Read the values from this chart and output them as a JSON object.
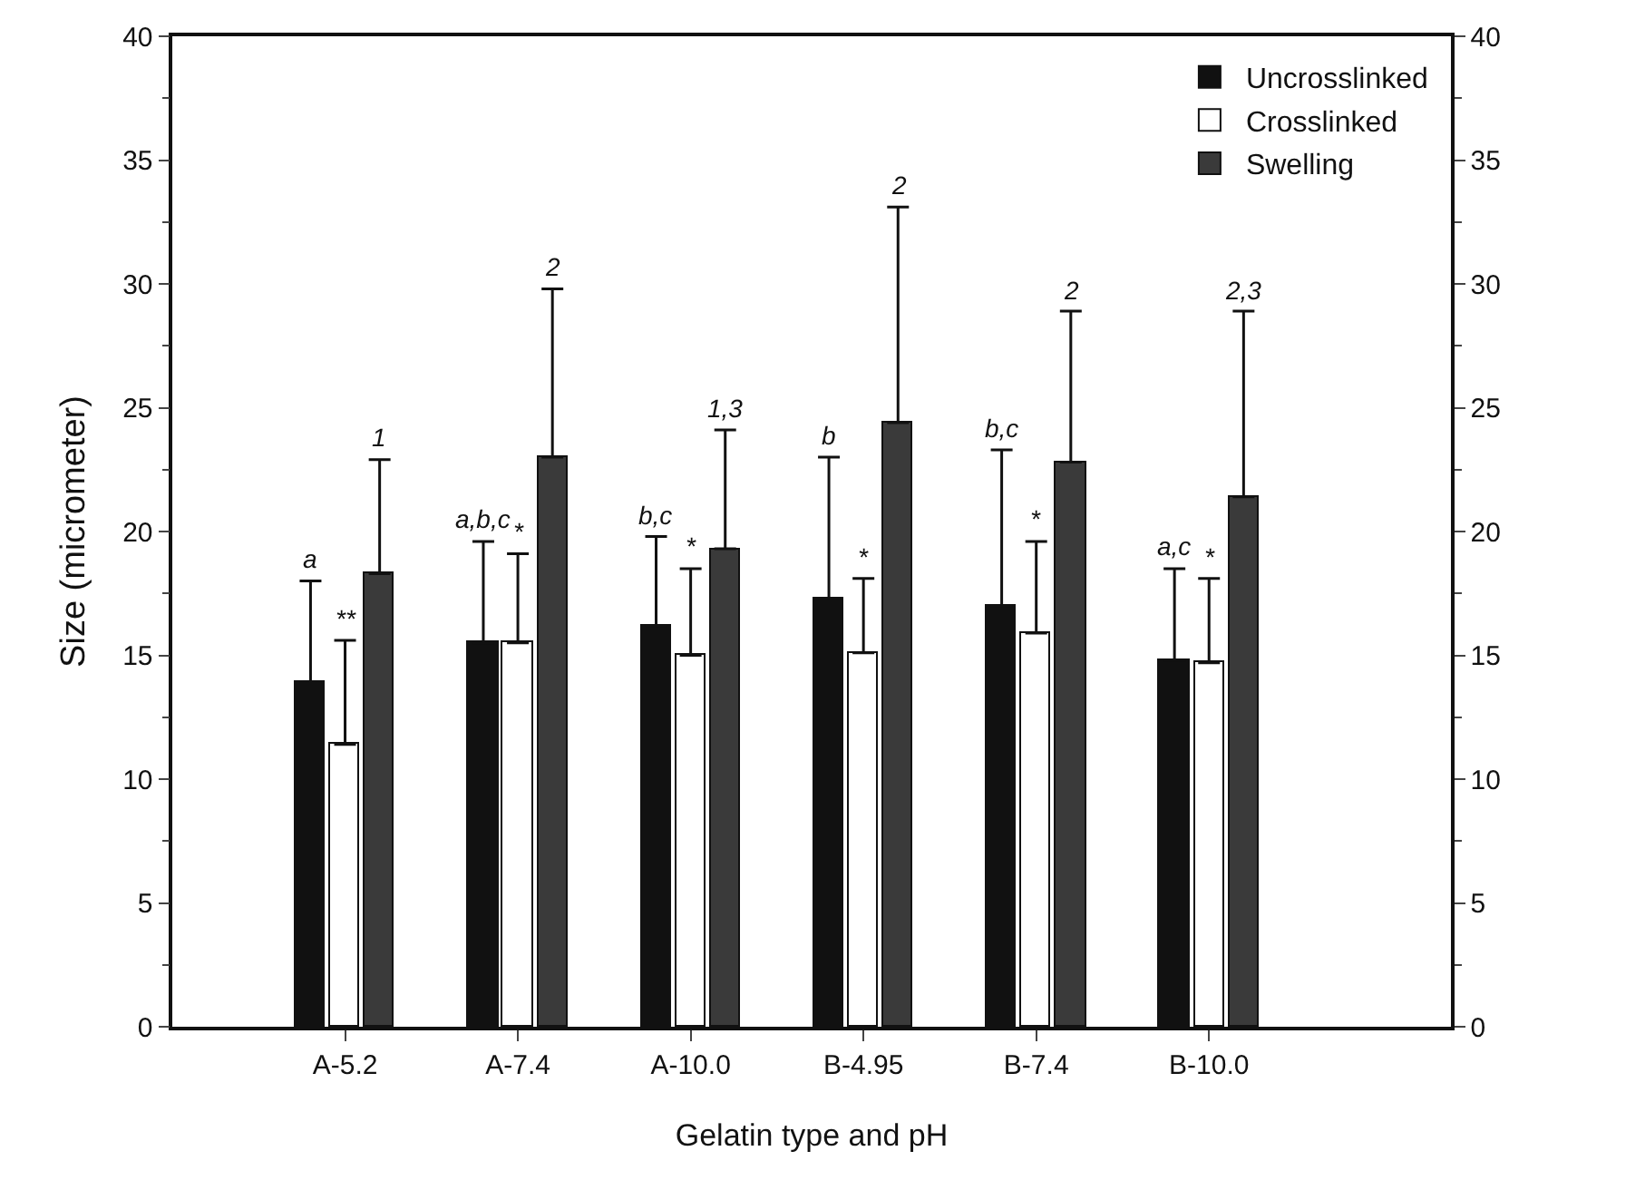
{
  "chart_data": {
    "type": "bar",
    "xlabel": "Gelatin type and pH",
    "ylabel": "Size (micrometer)",
    "categories": [
      "A-5.2",
      "A-7.4",
      "A-10.0",
      "B-4.95",
      "B-7.4",
      "B-10.0"
    ],
    "series": [
      {
        "name": "Uncrosslinked",
        "color": "#111111",
        "values": [
          13.9,
          15.5,
          16.2,
          17.3,
          17.0,
          14.8
        ],
        "errors": [
          [
            13.9,
            18.0
          ],
          [
            15.5,
            19.6
          ],
          [
            16.2,
            19.8
          ],
          [
            17.3,
            23.0
          ],
          [
            17.0,
            23.3
          ],
          [
            14.8,
            18.5
          ]
        ]
      },
      {
        "name": "Crosslinked",
        "color": "#ffffff",
        "values": [
          11.4,
          15.5,
          15.0,
          15.1,
          15.9,
          14.7
        ],
        "errors": [
          [
            11.4,
            15.6
          ],
          [
            15.5,
            19.1
          ],
          [
            15.0,
            18.5
          ],
          [
            15.1,
            18.1
          ],
          [
            15.9,
            19.6
          ],
          [
            14.7,
            18.1
          ]
        ]
      },
      {
        "name": "Swelling",
        "color": "#3a3a3a",
        "values": [
          18.3,
          23.0,
          19.3,
          24.4,
          22.8,
          21.4
        ],
        "errors": [
          [
            18.3,
            22.9
          ],
          [
            23.0,
            29.8
          ],
          [
            19.3,
            24.1
          ],
          [
            24.4,
            33.1
          ],
          [
            22.8,
            28.9
          ],
          [
            21.4,
            28.9
          ]
        ]
      }
    ],
    "annotations": [
      "a",
      "**",
      "1",
      "a,b,c",
      "*",
      "2",
      "b,c",
      "*",
      "1,3",
      "b",
      "*",
      "2",
      "b,c",
      "*",
      "2",
      "a,c",
      "*",
      "2,3"
    ],
    "ylim": [
      0,
      40
    ],
    "yticks": [
      0,
      5,
      10,
      15,
      20,
      25,
      30,
      35,
      40
    ],
    "y2lim": [
      0,
      40
    ],
    "y2ticks": [
      0,
      5,
      10,
      15,
      20,
      25,
      30,
      35,
      40
    ],
    "grid": false,
    "legend": "top right"
  }
}
